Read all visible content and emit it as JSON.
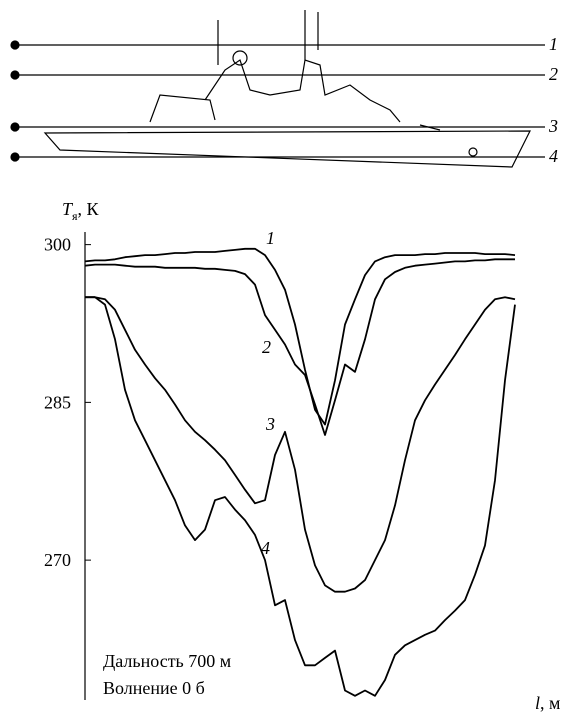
{
  "chart_data": {
    "type": "line",
    "y_label_main": "T",
    "y_label_sub": "я",
    "y_label_unit": ", К",
    "x_label_main": "l",
    "x_label_unit": ", м",
    "annotations": [
      "Дальность 700 м",
      "Волнение 0 б"
    ],
    "ylim": [
      256.7,
      301.2
    ],
    "yticks": [
      300,
      285,
      270
    ],
    "color": "#000000",
    "series": [
      {
        "name": "1",
        "values": [
          298.4,
          298.5,
          298.5,
          298.6,
          298.8,
          298.9,
          299.0,
          299.0,
          299.1,
          299.2,
          299.2,
          299.3,
          299.3,
          299.3,
          299.4,
          299.5,
          299.6,
          299.6,
          299.0,
          297.6,
          295.7,
          292.4,
          288.1,
          284.3,
          282.9,
          287.1,
          292.4,
          294.8,
          297.1,
          298.4,
          298.8,
          299.0,
          299.0,
          299.0,
          299.1,
          299.1,
          299.2,
          299.2,
          299.2,
          299.2,
          299.1,
          299.1,
          299.1,
          299.0
        ]
      },
      {
        "name": "2",
        "values": [
          298.0,
          298.1,
          298.1,
          298.1,
          298.0,
          297.9,
          297.9,
          297.9,
          297.8,
          297.8,
          297.8,
          297.8,
          297.7,
          297.7,
          297.6,
          297.5,
          297.2,
          296.2,
          293.3,
          291.9,
          290.5,
          288.6,
          287.6,
          284.8,
          281.9,
          285.2,
          288.6,
          287.9,
          291.0,
          294.8,
          296.7,
          297.4,
          297.8,
          298.0,
          298.1,
          298.2,
          298.3,
          298.4,
          298.4,
          298.5,
          298.5,
          298.6,
          298.6,
          298.6
        ]
      },
      {
        "name": "3",
        "values": [
          295.0,
          295.0,
          294.8,
          293.8,
          291.9,
          290.0,
          288.6,
          287.3,
          286.2,
          284.8,
          283.3,
          282.2,
          281.4,
          280.5,
          279.5,
          278.1,
          276.7,
          275.4,
          275.7,
          280.0,
          282.2,
          278.6,
          272.9,
          269.5,
          267.6,
          267.0,
          267.0,
          267.3,
          268.1,
          270.0,
          271.9,
          275.2,
          279.5,
          283.3,
          285.2,
          286.7,
          288.1,
          289.5,
          291.0,
          292.4,
          293.8,
          294.8,
          295.0,
          294.8
        ]
      },
      {
        "name": "4",
        "values": [
          295.0,
          295.0,
          294.3,
          291.0,
          286.2,
          283.3,
          281.4,
          279.5,
          277.6,
          275.7,
          273.3,
          271.9,
          272.9,
          275.7,
          276.0,
          274.8,
          273.8,
          272.4,
          270.0,
          265.7,
          266.2,
          262.4,
          260.0,
          260.0,
          260.7,
          261.4,
          257.6,
          257.1,
          257.6,
          257.1,
          258.6,
          261.0,
          261.9,
          262.4,
          262.9,
          263.3,
          264.3,
          265.2,
          266.2,
          268.6,
          271.4,
          277.6,
          287.1,
          294.3
        ]
      }
    ]
  }
}
